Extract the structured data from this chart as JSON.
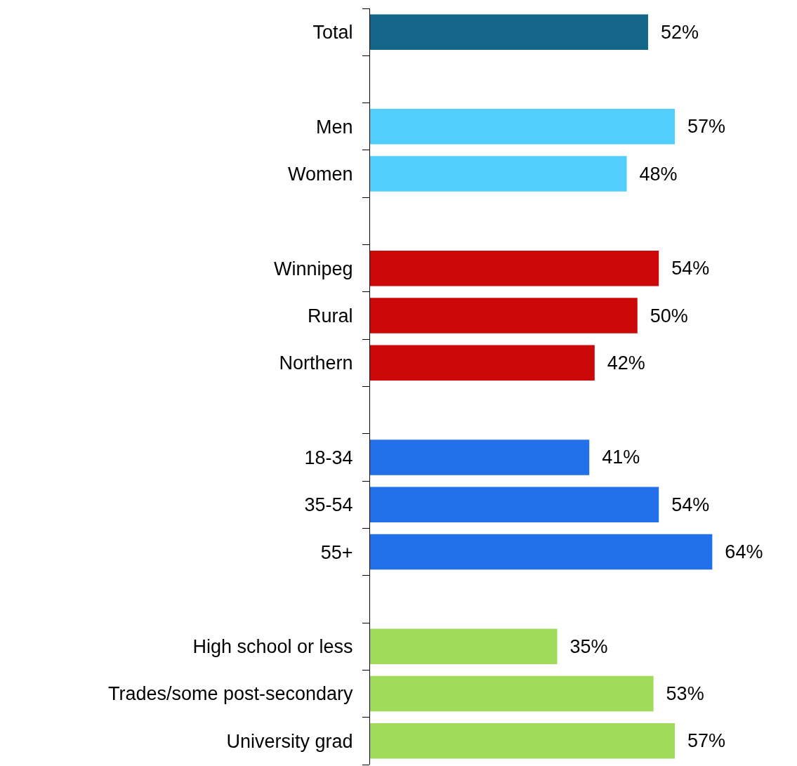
{
  "chart_data": {
    "type": "bar",
    "orientation": "horizontal",
    "categories": [
      "Total",
      null,
      "Men",
      "Women",
      null,
      "Winnipeg",
      "Rural",
      "Northern",
      null,
      "18-34",
      "35-54",
      "55+",
      null,
      "High school or less",
      "Trades/some post-secondary",
      "University grad"
    ],
    "values": [
      52,
      null,
      57,
      48,
      null,
      54,
      50,
      42,
      null,
      41,
      54,
      64,
      null,
      35,
      53,
      57
    ],
    "value_labels": [
      "52%",
      null,
      "57%",
      "48%",
      null,
      "54%",
      "50%",
      "42%",
      null,
      "41%",
      "54%",
      "64%",
      null,
      "35%",
      "53%",
      "57%"
    ],
    "colors": [
      "#136688",
      null,
      "#52cefc",
      "#52cefc",
      null,
      "#cc0808",
      "#cc0808",
      "#cc0808",
      null,
      "#2271ea",
      "#2271ea",
      "#2271ea",
      null,
      "#a0dc5a",
      "#a0dc5a",
      "#a0dc5a"
    ]
  }
}
